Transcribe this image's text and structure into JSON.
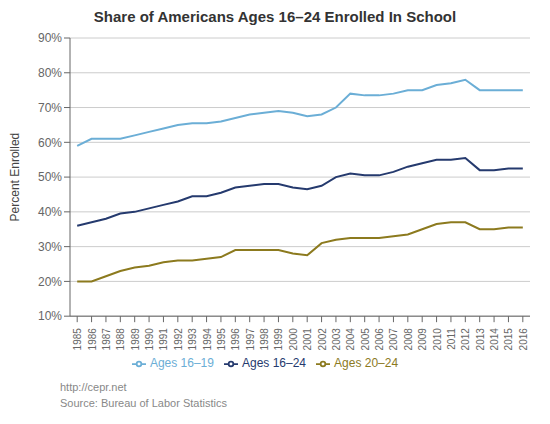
{
  "chart_data": {
    "type": "line",
    "title": "Share of Americans Ages 16–24 Enrolled In School",
    "y_label": "Percent Enrolled",
    "x": [
      1985,
      1986,
      1987,
      1988,
      1989,
      1990,
      1991,
      1992,
      1993,
      1994,
      1995,
      1996,
      1997,
      1998,
      1999,
      2000,
      2001,
      2002,
      2003,
      2004,
      2005,
      2006,
      2007,
      2008,
      2009,
      2010,
      2011,
      2012,
      2013,
      2014,
      2015,
      2016
    ],
    "series": [
      {
        "name": "Ages 16–19",
        "color": "#6baed6",
        "values": [
          59.0,
          61.0,
          61.0,
          61.0,
          62.0,
          63.0,
          64.0,
          65.0,
          65.5,
          65.5,
          66.0,
          67.0,
          68.0,
          68.5,
          69.0,
          68.5,
          67.5,
          68.0,
          70.0,
          74.0,
          73.5,
          73.5,
          74.0,
          75.0,
          75.0,
          76.5,
          77.0,
          78.0,
          75.0,
          75.0,
          75.0,
          75.0
        ]
      },
      {
        "name": "Ages 20–24",
        "color": "#8c7a1e",
        "values": [
          20.0,
          20.0,
          21.5,
          23.0,
          24.0,
          24.5,
          25.5,
          26.0,
          26.0,
          26.5,
          27.0,
          29.0,
          29.0,
          29.0,
          29.0,
          28.0,
          27.5,
          31.0,
          32.0,
          32.5,
          32.5,
          32.5,
          33.0,
          33.5,
          35.0,
          36.5,
          37.0,
          37.0,
          35.0,
          35.0,
          35.5,
          35.5
        ]
      },
      {
        "name": "Ages 16–24",
        "color": "#253a6e",
        "values": [
          36.0,
          37.0,
          38.0,
          39.5,
          40.0,
          41.0,
          42.0,
          43.0,
          44.5,
          44.5,
          45.5,
          47.0,
          47.5,
          48.0,
          48.0,
          47.0,
          46.5,
          47.5,
          50.0,
          51.0,
          50.5,
          50.5,
          51.5,
          53.0,
          54.0,
          55.0,
          55.0,
          55.5,
          52.0,
          52.0,
          52.5,
          52.5
        ]
      }
    ],
    "xlim": [
      1984.5,
      2016.5
    ],
    "xticks": [
      1985,
      1986,
      1987,
      1988,
      1989,
      1990,
      1991,
      1992,
      1993,
      1994,
      1995,
      1996,
      1997,
      1998,
      1999,
      2000,
      2001,
      2002,
      2003,
      2004,
      2005,
      2006,
      2007,
      2008,
      2009,
      2010,
      2011,
      2012,
      2013,
      2014,
      2015,
      2016
    ],
    "ylim": [
      10,
      90
    ],
    "yticks": [
      {
        "value": 10,
        "label": "10%"
      },
      {
        "value": 20,
        "label": "20%"
      },
      {
        "value": 30,
        "label": "30%"
      },
      {
        "value": 40,
        "label": "40%"
      },
      {
        "value": 50,
        "label": "50%"
      },
      {
        "value": 60,
        "label": "60%"
      },
      {
        "value": 70,
        "label": "70%"
      },
      {
        "value": 80,
        "label": "80%"
      },
      {
        "value": 90,
        "label": "90%"
      }
    ],
    "grid": true,
    "legend": "bottom",
    "annotations": [
      "http://cepr.net",
      "Source: Bureau of Labor Statistics"
    ]
  }
}
